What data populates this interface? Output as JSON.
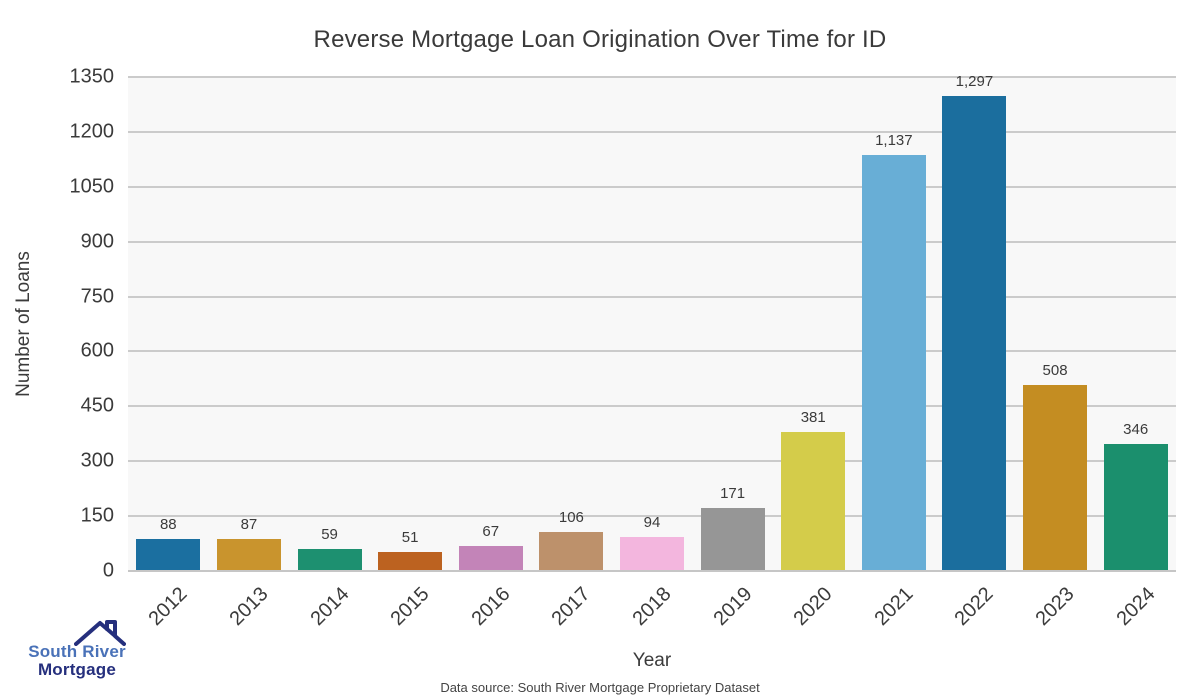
{
  "title": "Reverse Mortgage Loan Origination Over Time for ID",
  "footer": "Data source: South River Mortgage Proprietary Dataset",
  "logo": {
    "line1": "South River",
    "line2": "Mortgage",
    "color1": "#4a72b8",
    "color2": "#252f7d"
  },
  "chart_data": {
    "type": "bar",
    "title": "Reverse Mortgage Loan Origination Over Time for ID",
    "xlabel": "Year",
    "ylabel": "Number of Loans",
    "categories": [
      "2012",
      "2013",
      "2014",
      "2015",
      "2016",
      "2017",
      "2018",
      "2019",
      "2020",
      "2021",
      "2022",
      "2023",
      "2024"
    ],
    "values": [
      88,
      87,
      59,
      51,
      67,
      106,
      94,
      171,
      381,
      1137,
      1297,
      508,
      346
    ],
    "value_labels": [
      "88",
      "87",
      "59",
      "51",
      "67",
      "106",
      "94",
      "171",
      "381",
      "1,137",
      "1,297",
      "508",
      "346"
    ],
    "bar_colors": [
      "#1b6fa0",
      "#c9942d",
      "#1d9070",
      "#bc6220",
      "#c384b8",
      "#bd916b",
      "#f3b6de",
      "#969696",
      "#d4cc4a",
      "#68aed6",
      "#1b6e9e",
      "#c48d22",
      "#1b8f6d"
    ],
    "ylim": [
      0,
      1350
    ],
    "yticks": [
      0,
      150,
      300,
      450,
      600,
      750,
      900,
      1050,
      1200,
      1350
    ],
    "grid": true,
    "legend": "none",
    "plot_bg": "#f8f8f8",
    "gridline_color": "#cbcbcb"
  }
}
